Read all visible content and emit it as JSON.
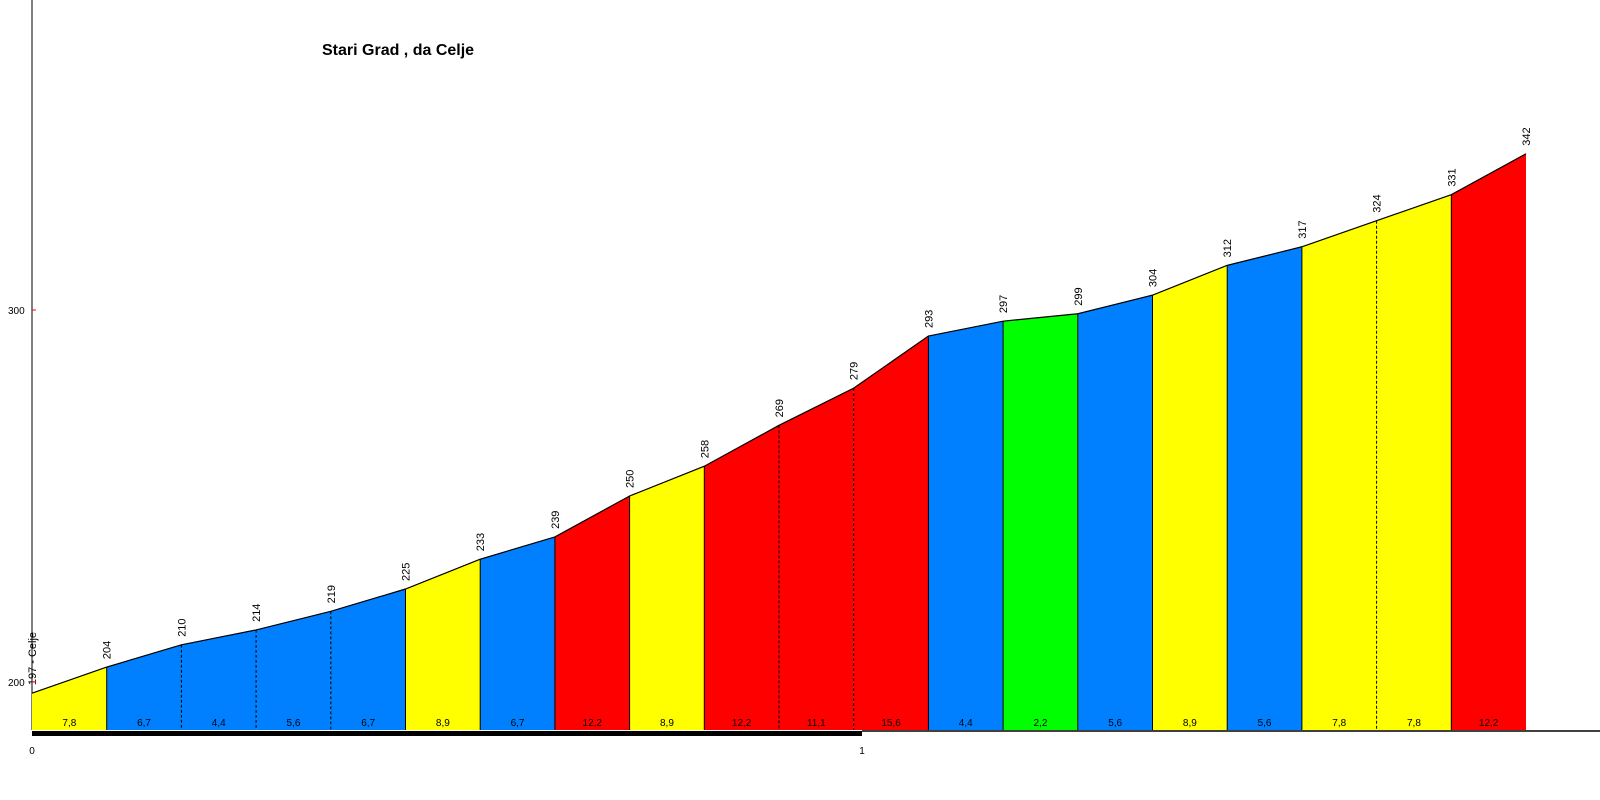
{
  "chart_data": {
    "type": "area",
    "title": "Stari Grad , da Celje",
    "xlabel": "",
    "ylabel": "",
    "x_ticks": [
      "0",
      "1"
    ],
    "y_ticks": [
      "200",
      "300"
    ],
    "start_label": "197 - Celje",
    "x_km": [
      0,
      0.09,
      0.18,
      0.27,
      0.36,
      0.45,
      0.54,
      0.63,
      0.72,
      0.81,
      0.9,
      0.99,
      1.08,
      1.17,
      1.26,
      1.35,
      1.44,
      1.53,
      1.62,
      1.71,
      1.8
    ],
    "altitudes": [
      197,
      204,
      210,
      214,
      219,
      225,
      233,
      239,
      250,
      258,
      269,
      279,
      293,
      297,
      299,
      304,
      312,
      317,
      324,
      331,
      342
    ],
    "altitude_labels": [
      "197 - Celje",
      "204",
      "210",
      "214",
      "219",
      "225",
      "233",
      "239",
      "250",
      "258",
      "269",
      "279",
      "293",
      "297",
      "299",
      "304",
      "312",
      "317",
      "324",
      "331",
      "342"
    ],
    "gradients": [
      "7,8",
      "6,7",
      "4,4",
      "5,6",
      "6,7",
      "8,9",
      "6,7",
      "12,2",
      "8,9",
      "12,2",
      "11,1",
      "15,6",
      "4,4",
      "2,2",
      "5,6",
      "8,9",
      "5,6",
      "7,8",
      "7,8",
      "12,2"
    ],
    "segment_colors": [
      "#FFFF00",
      "#0080FF",
      "#0080FF",
      "#0080FF",
      "#0080FF",
      "#FFFF00",
      "#0080FF",
      "#FF0000",
      "#FFFF00",
      "#FF0000",
      "#FF0000",
      "#FF0000",
      "#0080FF",
      "#00FF00",
      "#0080FF",
      "#FFFF00",
      "#0080FF",
      "#FFFF00",
      "#FFFF00",
      "#FF0000"
    ],
    "y_axis_tick_color": "#FF0000",
    "grid": false
  }
}
